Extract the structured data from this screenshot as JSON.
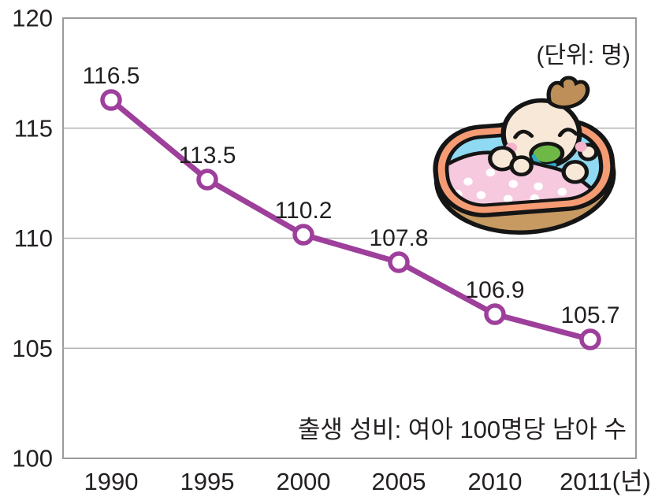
{
  "unit_label": "(단위: 명)",
  "note": "출생 성비: 여아 100명당 남아 수",
  "colors": {
    "line": "#9E3F9B",
    "marker_fill": "#FFFFFF",
    "text": "#231F20",
    "grid": "#B3B3B3",
    "border": "#9A9A9A",
    "background": "#FFFFFF",
    "illustration": {
      "basket": "#C79A62",
      "rim": "#F59C74",
      "inner_blue": "#8FD9F2",
      "blanket": "#F6C9DF",
      "blanket_dot": "#FFFFFF",
      "skin": "#F8E8D8",
      "hair": "#BE8F58",
      "pacifier": "#6FB848",
      "pacifier_ring": "#2BAAC8",
      "cheek": "#F4B3CB",
      "outline": "#151515"
    }
  },
  "chart_data": {
    "type": "line",
    "title": "출생 성비 (여아 100명당 남아 수)",
    "categories": [
      "1990",
      "1995",
      "2000",
      "2005",
      "2010",
      "2011(년)"
    ],
    "values": [
      116.5,
      113.5,
      110.2,
      107.8,
      106.9,
      105.7
    ],
    "point_labels": [
      "116.5",
      "113.5",
      "110.2",
      "107.8",
      "106.9",
      "105.7"
    ],
    "y_ticks": [
      120,
      115,
      110,
      105,
      100
    ],
    "ylim": [
      100,
      120
    ],
    "xlabel": "년",
    "ylabel": "명",
    "unit_annotation": "(단위: 명)",
    "note_annotation": "출생 성비: 여아 100명당 남아 수",
    "legend": false,
    "grid": "horizontal",
    "line_color": "#9E3F9B",
    "marker": "open-circle"
  }
}
